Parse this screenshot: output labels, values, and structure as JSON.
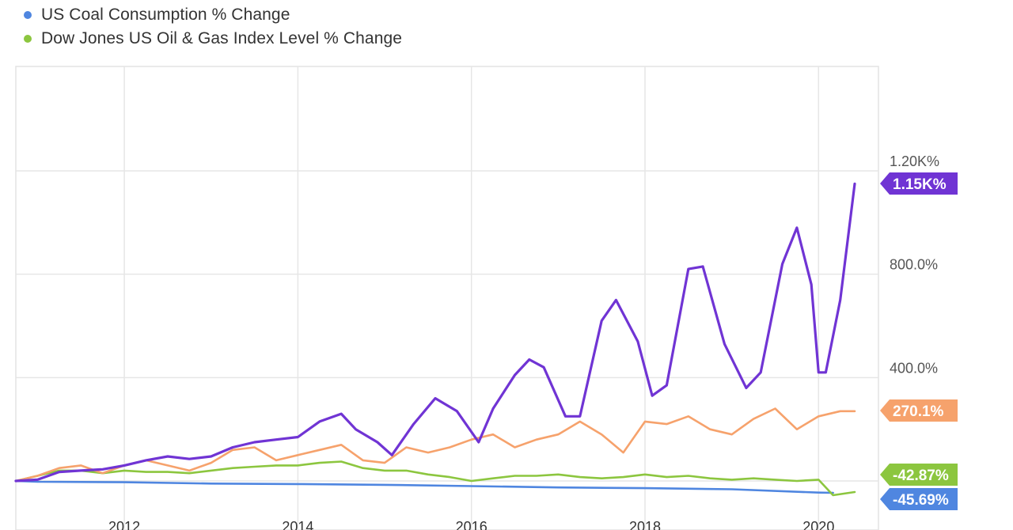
{
  "legend": [
    {
      "label": "US Coal Consumption % Change",
      "color": "#4f86e0"
    },
    {
      "label": "Dow Jones US Oil & Gas Index Level % Change",
      "color": "#8cc63f"
    }
  ],
  "chart_data": {
    "type": "line",
    "x_range": [
      "2010-10",
      "2020-06"
    ],
    "xticks": [
      "2012",
      "2014",
      "2016",
      "2018",
      "2020"
    ],
    "ylim": [
      -100,
      1500
    ],
    "yticks": [
      "400.0%",
      "800.0%",
      "1.20K%"
    ],
    "grid": true,
    "series": [
      {
        "name": "",
        "color": "#7034d4",
        "end_label": "1.15K%",
        "points": [
          [
            "2010-10",
            0
          ],
          [
            "2011-01",
            5
          ],
          [
            "2011-04",
            35
          ],
          [
            "2011-07",
            40
          ],
          [
            "2011-10",
            45
          ],
          [
            "2012-01",
            60
          ],
          [
            "2012-04",
            80
          ],
          [
            "2012-07",
            95
          ],
          [
            "2012-10",
            85
          ],
          [
            "2013-01",
            95
          ],
          [
            "2013-04",
            130
          ],
          [
            "2013-07",
            150
          ],
          [
            "2013-10",
            160
          ],
          [
            "2014-01",
            170
          ],
          [
            "2014-04",
            230
          ],
          [
            "2014-07",
            260
          ],
          [
            "2014-09",
            200
          ],
          [
            "2014-12",
            150
          ],
          [
            "2015-02",
            100
          ],
          [
            "2015-05",
            220
          ],
          [
            "2015-08",
            320
          ],
          [
            "2015-11",
            270
          ],
          [
            "2016-02",
            150
          ],
          [
            "2016-04",
            280
          ],
          [
            "2016-07",
            410
          ],
          [
            "2016-09",
            470
          ],
          [
            "2016-11",
            440
          ],
          [
            "2017-02",
            250
          ],
          [
            "2017-04",
            250
          ],
          [
            "2017-07",
            620
          ],
          [
            "2017-09",
            700
          ],
          [
            "2017-12",
            540
          ],
          [
            "2018-02",
            330
          ],
          [
            "2018-04",
            370
          ],
          [
            "2018-07",
            820
          ],
          [
            "2018-09",
            830
          ],
          [
            "2018-12",
            530
          ],
          [
            "2019-03",
            360
          ],
          [
            "2019-05",
            420
          ],
          [
            "2019-08",
            840
          ],
          [
            "2019-10",
            980
          ],
          [
            "2019-12",
            760
          ],
          [
            "2020-01",
            420
          ],
          [
            "2020-02",
            420
          ],
          [
            "2020-04",
            700
          ],
          [
            "2020-06",
            1150
          ]
        ]
      },
      {
        "name": "",
        "color": "#f6a26c",
        "end_label": "270.1%",
        "points": [
          [
            "2010-10",
            0
          ],
          [
            "2011-01",
            20
          ],
          [
            "2011-04",
            50
          ],
          [
            "2011-07",
            60
          ],
          [
            "2011-10",
            30
          ],
          [
            "2012-01",
            60
          ],
          [
            "2012-04",
            80
          ],
          [
            "2012-07",
            60
          ],
          [
            "2012-10",
            40
          ],
          [
            "2013-01",
            70
          ],
          [
            "2013-04",
            120
          ],
          [
            "2013-07",
            130
          ],
          [
            "2013-10",
            80
          ],
          [
            "2014-01",
            100
          ],
          [
            "2014-04",
            120
          ],
          [
            "2014-07",
            140
          ],
          [
            "2014-10",
            80
          ],
          [
            "2015-01",
            70
          ],
          [
            "2015-04",
            130
          ],
          [
            "2015-07",
            110
          ],
          [
            "2015-10",
            130
          ],
          [
            "2016-01",
            160
          ],
          [
            "2016-04",
            180
          ],
          [
            "2016-07",
            130
          ],
          [
            "2016-10",
            160
          ],
          [
            "2017-01",
            180
          ],
          [
            "2017-04",
            230
          ],
          [
            "2017-07",
            180
          ],
          [
            "2017-10",
            110
          ],
          [
            "2018-01",
            230
          ],
          [
            "2018-04",
            220
          ],
          [
            "2018-07",
            250
          ],
          [
            "2018-10",
            200
          ],
          [
            "2019-01",
            180
          ],
          [
            "2019-04",
            240
          ],
          [
            "2019-07",
            280
          ],
          [
            "2019-10",
            200
          ],
          [
            "2020-01",
            250
          ],
          [
            "2020-04",
            270
          ],
          [
            "2020-06",
            270
          ]
        ]
      },
      {
        "name": "Dow Jones US Oil & Gas Index Level % Change",
        "color": "#8cc63f",
        "end_label": "-42.87%",
        "points": [
          [
            "2010-10",
            0
          ],
          [
            "2011-01",
            20
          ],
          [
            "2011-04",
            40
          ],
          [
            "2011-07",
            40
          ],
          [
            "2011-10",
            30
          ],
          [
            "2012-01",
            40
          ],
          [
            "2012-04",
            35
          ],
          [
            "2012-07",
            35
          ],
          [
            "2012-10",
            30
          ],
          [
            "2013-01",
            40
          ],
          [
            "2013-04",
            50
          ],
          [
            "2013-07",
            55
          ],
          [
            "2013-10",
            60
          ],
          [
            "2014-01",
            60
          ],
          [
            "2014-04",
            70
          ],
          [
            "2014-07",
            75
          ],
          [
            "2014-10",
            50
          ],
          [
            "2015-01",
            40
          ],
          [
            "2015-04",
            40
          ],
          [
            "2015-07",
            25
          ],
          [
            "2015-10",
            15
          ],
          [
            "2016-01",
            0
          ],
          [
            "2016-04",
            10
          ],
          [
            "2016-07",
            20
          ],
          [
            "2016-10",
            20
          ],
          [
            "2017-01",
            25
          ],
          [
            "2017-04",
            15
          ],
          [
            "2017-07",
            10
          ],
          [
            "2017-10",
            15
          ],
          [
            "2018-01",
            25
          ],
          [
            "2018-04",
            15
          ],
          [
            "2018-07",
            20
          ],
          [
            "2018-10",
            10
          ],
          [
            "2019-01",
            5
          ],
          [
            "2019-04",
            10
          ],
          [
            "2019-07",
            5
          ],
          [
            "2019-10",
            0
          ],
          [
            "2020-01",
            5
          ],
          [
            "2020-03",
            -55
          ],
          [
            "2020-06",
            -43
          ]
        ]
      },
      {
        "name": "US Coal Consumption % Change",
        "color": "#4f86e0",
        "end_label": "-45.69%",
        "points": [
          [
            "2010-10",
            0
          ],
          [
            "2011-01",
            -3
          ],
          [
            "2012-01",
            -5
          ],
          [
            "2013-01",
            -10
          ],
          [
            "2014-01",
            -12
          ],
          [
            "2015-01",
            -15
          ],
          [
            "2016-01",
            -20
          ],
          [
            "2017-01",
            -25
          ],
          [
            "2018-01",
            -28
          ],
          [
            "2019-01",
            -32
          ],
          [
            "2020-01",
            -45
          ],
          [
            "2020-03",
            -46
          ]
        ]
      }
    ]
  }
}
